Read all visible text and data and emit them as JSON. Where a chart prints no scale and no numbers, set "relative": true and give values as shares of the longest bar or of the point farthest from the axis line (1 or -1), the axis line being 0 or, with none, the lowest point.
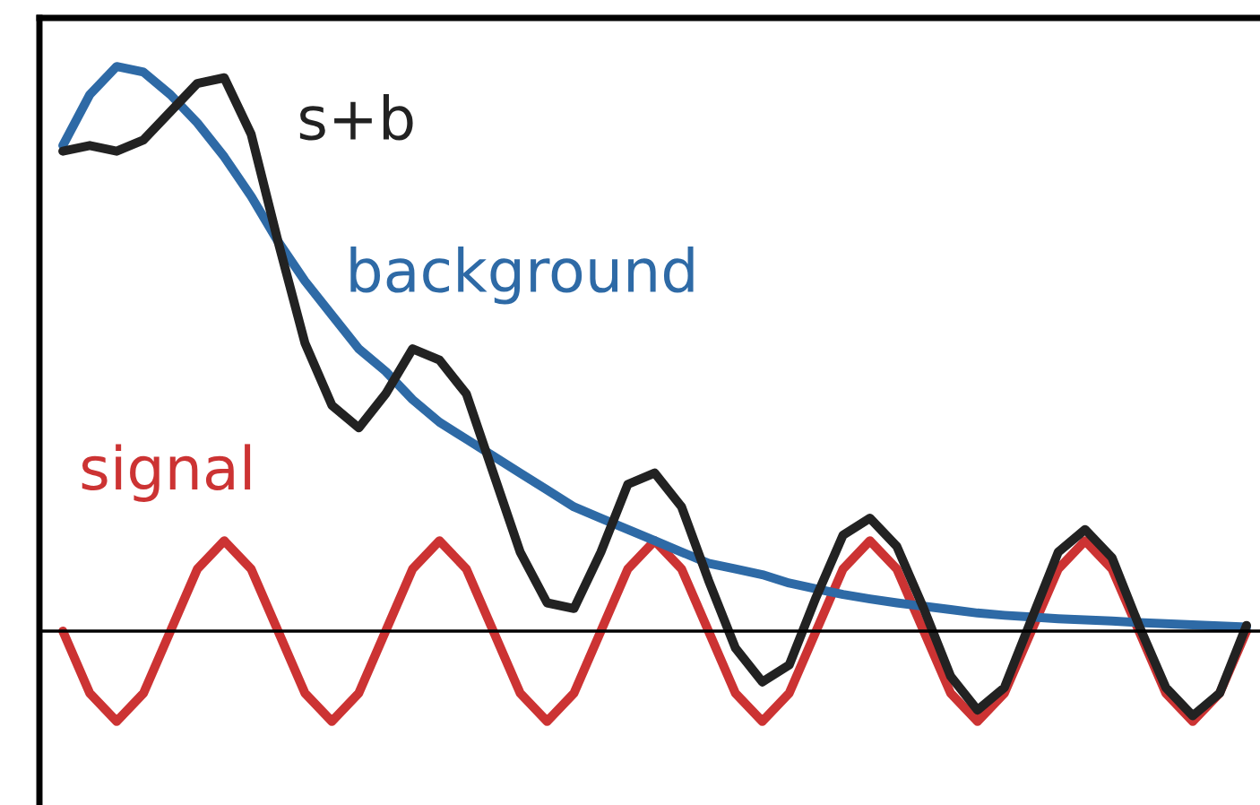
{
  "chart_data": {
    "type": "line",
    "relative": true,
    "legend": false,
    "categories": [
      null,
      null,
      null,
      null,
      null,
      null,
      null,
      null,
      null,
      null,
      null,
      null,
      null,
      null,
      null,
      null,
      null,
      null,
      null,
      null,
      null,
      null,
      null,
      null,
      null,
      null,
      null,
      null,
      null,
      null,
      null,
      null,
      null,
      null,
      null,
      null,
      null,
      null,
      null,
      null,
      null,
      null,
      null,
      null,
      null
    ],
    "series": [
      {
        "name": "signal",
        "color": "#cc3333",
        "values": [
          0,
          -0.11,
          -0.16,
          -0.11,
          0,
          0.11,
          0.16,
          0.11,
          0,
          -0.11,
          -0.16,
          -0.11,
          0,
          0.11,
          0.16,
          0.11,
          0,
          -0.11,
          -0.16,
          -0.11,
          0,
          0.11,
          0.16,
          0.11,
          0,
          -0.11,
          -0.16,
          -0.11,
          0,
          0.11,
          0.16,
          0.11,
          0,
          -0.11,
          -0.16,
          -0.11,
          0,
          0.11,
          0.16,
          0.11,
          0,
          -0.11,
          -0.16,
          -0.11,
          0
        ]
      },
      {
        "name": "background",
        "color": "#2e6aa6",
        "values": [
          0.86,
          0.95,
          1.0,
          0.99,
          0.95,
          0.9,
          0.84,
          0.77,
          0.69,
          0.62,
          0.56,
          0.5,
          0.46,
          0.41,
          0.37,
          0.34,
          0.31,
          0.28,
          0.25,
          0.22,
          0.2,
          0.18,
          0.16,
          0.14,
          0.12,
          0.11,
          0.1,
          0.085,
          0.075,
          0.065,
          0.057,
          0.05,
          0.044,
          0.038,
          0.032,
          0.028,
          0.025,
          0.022,
          0.02,
          0.018,
          0.015,
          0.013,
          0.011,
          0.009,
          0.007
        ]
      },
      {
        "name": "s+b",
        "color": "#222222",
        "values": [
          0.85,
          0.86,
          0.85,
          0.87,
          0.92,
          0.97,
          0.98,
          0.88,
          0.69,
          0.51,
          0.4,
          0.36,
          0.42,
          0.5,
          0.48,
          0.42,
          0.28,
          0.14,
          0.05,
          0.04,
          0.14,
          0.26,
          0.28,
          0.22,
          0.09,
          -0.03,
          -0.09,
          -0.06,
          0.06,
          0.17,
          0.2,
          0.15,
          0.04,
          -0.08,
          -0.14,
          -0.1,
          0.02,
          0.14,
          0.18,
          0.13,
          0.01,
          -0.1,
          -0.15,
          -0.11,
          0.01
        ]
      }
    ]
  }
}
